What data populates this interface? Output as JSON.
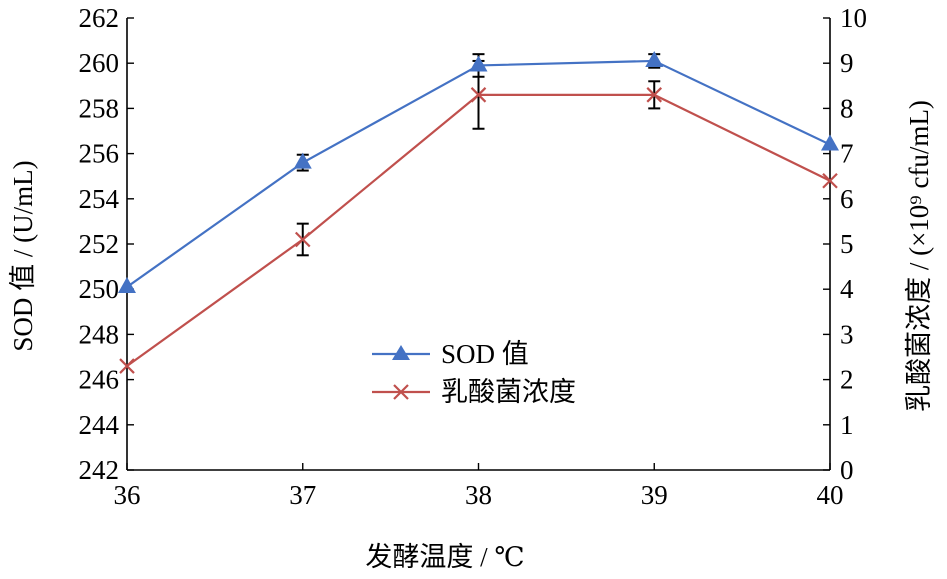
{
  "chart_data": {
    "type": "line",
    "title": "",
    "xlabel": "发酵温度 / ℃",
    "ylabel_left": "SOD 值 / (U/mL)",
    "ylabel_right": "乳酸菌浓度 / (×10⁹ cfu/mL)",
    "x": [
      36,
      37,
      38,
      39,
      40
    ],
    "x_ticks": [
      "36",
      "37",
      "38",
      "39",
      "40"
    ],
    "xlim": [
      36,
      40
    ],
    "ylim_left": [
      242,
      262
    ],
    "ylim_right": [
      0,
      10
    ],
    "y_ticks_left": [
      "242",
      "244",
      "246",
      "248",
      "250",
      "252",
      "254",
      "256",
      "258",
      "260",
      "262"
    ],
    "y_ticks_right": [
      "0",
      "1",
      "2",
      "3",
      "4",
      "5",
      "6",
      "7",
      "8",
      "9",
      "10"
    ],
    "grid": false,
    "legend_position": "center",
    "series": [
      {
        "name": "SOD 值",
        "axis": "left",
        "marker": "triangle",
        "color": "#4472C4",
        "values": [
          250.1,
          255.6,
          259.9,
          260.1,
          256.4
        ],
        "errors": [
          0,
          0.35,
          0.5,
          0.3,
          0
        ]
      },
      {
        "name": "乳酸菌浓度",
        "axis": "right",
        "marker": "x",
        "color": "#C0504D",
        "values": [
          2.3,
          5.1,
          8.3,
          8.3,
          6.4
        ],
        "errors": [
          0,
          0.35,
          0.75,
          0.3,
          0
        ]
      }
    ]
  }
}
